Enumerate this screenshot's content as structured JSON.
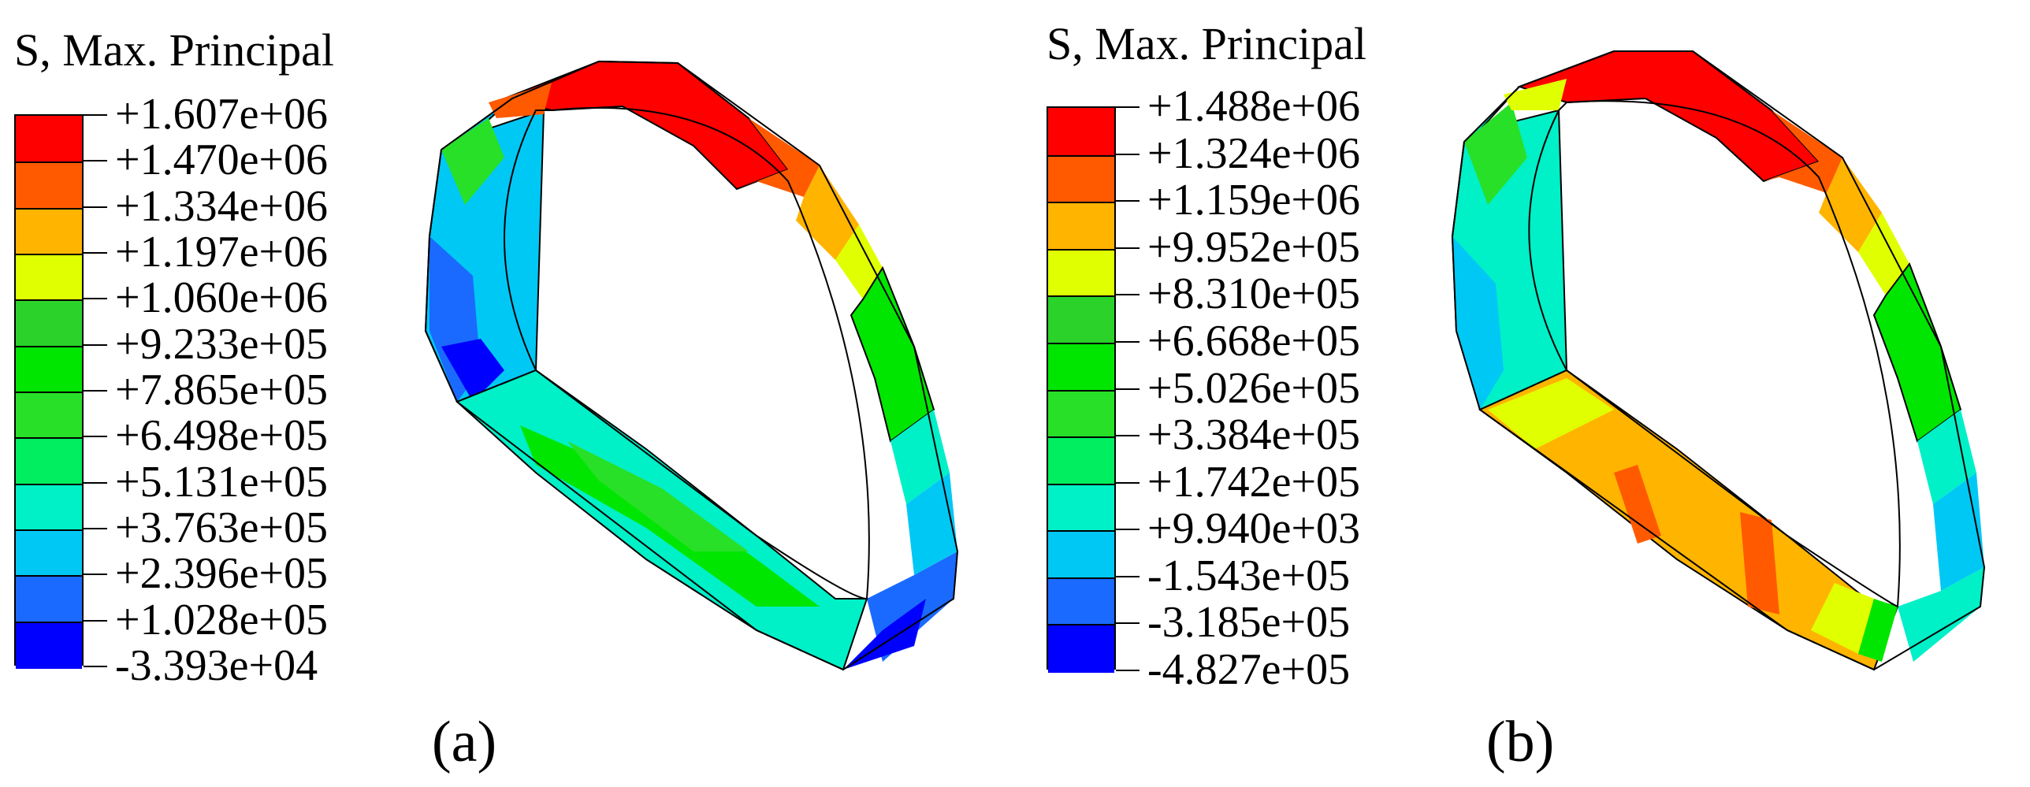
{
  "panels": [
    {
      "id": "a",
      "legend_title": "S, Max. Principal",
      "tick_labels": [
        "+1.607e+06",
        "+1.470e+06",
        "+1.334e+06",
        "+1.197e+06",
        "+1.060e+06",
        "+9.233e+05",
        "+7.865e+05",
        "+6.498e+05",
        "+5.131e+05",
        "+3.763e+05",
        "+2.396e+05",
        "+1.028e+05",
        "-3.393e+04"
      ],
      "panel_label": "(a)"
    },
    {
      "id": "b",
      "legend_title": "S, Max. Principal",
      "tick_labels": [
        "+1.488e+06",
        "+1.324e+06",
        "+1.159e+06",
        "+9.952e+05",
        "+8.310e+05",
        "+6.668e+05",
        "+5.026e+05",
        "+3.384e+05",
        "+1.742e+05",
        "+9.940e+03",
        "-1.543e+05",
        "-3.185e+05",
        "-4.827e+05"
      ],
      "panel_label": "(b)"
    }
  ],
  "colormap": [
    "#ff0000",
    "#ff5a00",
    "#ffb400",
    "#e0ff00",
    "#2ad22a",
    "#00e600",
    "#28e028",
    "#00ee60",
    "#00f0c8",
    "#00c8f5",
    "#1a6aff",
    "#0000ff"
  ]
}
